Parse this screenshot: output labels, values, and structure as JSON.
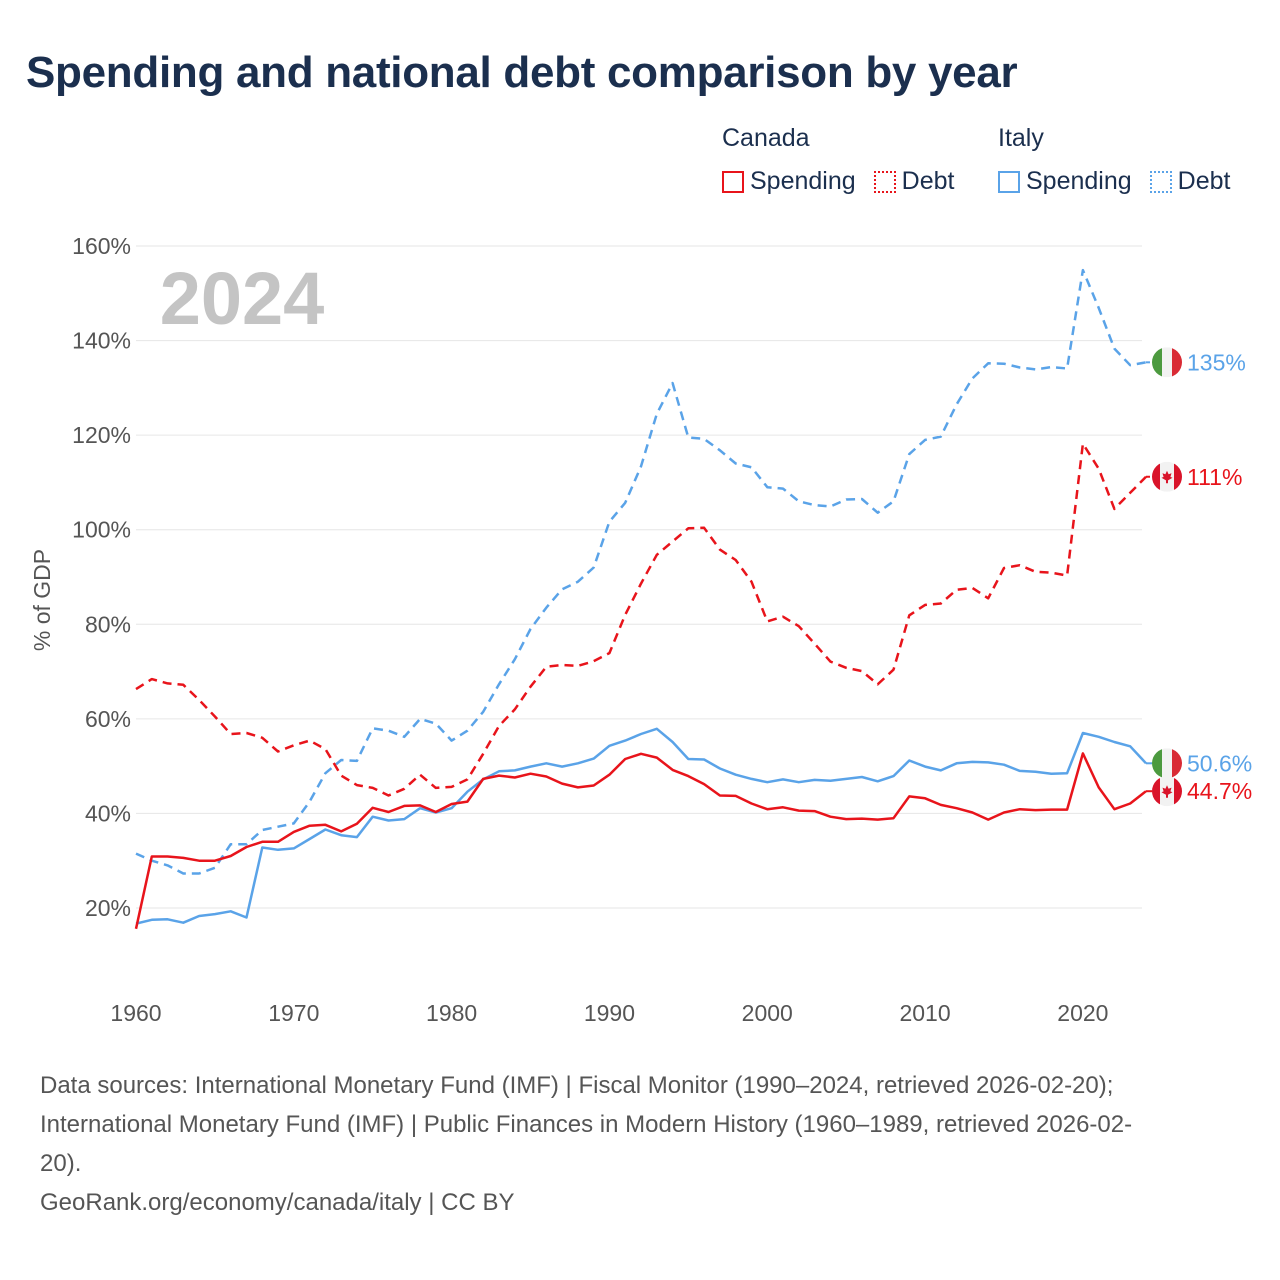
{
  "chart_data": {
    "type": "line",
    "title": "Spending and national debt comparison by year",
    "year_watermark": "2024",
    "ylabel": "% of GDP",
    "xlabel": "",
    "xlim": [
      1960,
      2024
    ],
    "ylim": [
      10,
      160
    ],
    "x_ticks": [
      1960,
      1970,
      1980,
      1990,
      2000,
      2010,
      2020
    ],
    "y_ticks": [
      20,
      40,
      60,
      80,
      100,
      120,
      140,
      160
    ],
    "y_tick_labels": [
      "20%",
      "40%",
      "60%",
      "80%",
      "100%",
      "120%",
      "140%",
      "160%"
    ],
    "legend": {
      "groups": [
        {
          "country": "Canada",
          "items": [
            {
              "label": "Spending",
              "style": "solid",
              "color": "#e8141b"
            },
            {
              "label": "Debt",
              "style": "dotted",
              "color": "#e8141b"
            }
          ]
        },
        {
          "country": "Italy",
          "items": [
            {
              "label": "Spending",
              "style": "solid",
              "color": "#5aa3e8"
            },
            {
              "label": "Debt",
              "style": "dotted",
              "color": "#5aa3e8"
            }
          ]
        }
      ],
      "placement": "top-right"
    },
    "series": [
      {
        "name": "Italy Debt",
        "country": "Italy",
        "kind": "Debt",
        "color": "#5aa3e8",
        "dash": true,
        "end_label": "135%",
        "flag": "italy",
        "x": [
          1960,
          1961,
          1962,
          1963,
          1964,
          1965,
          1966,
          1967,
          1968,
          1969,
          1970,
          1971,
          1972,
          1973,
          1974,
          1975,
          1976,
          1977,
          1978,
          1979,
          1980,
          1981,
          1982,
          1983,
          1984,
          1985,
          1986,
          1987,
          1988,
          1989,
          1990,
          1991,
          1992,
          1993,
          1994,
          1995,
          1996,
          1997,
          1998,
          1999,
          2000,
          2001,
          2002,
          2003,
          2004,
          2005,
          2006,
          2007,
          2008,
          2009,
          2010,
          2011,
          2012,
          2013,
          2014,
          2015,
          2016,
          2017,
          2018,
          2019,
          2020,
          2021,
          2022,
          2023,
          2024
        ],
        "values": [
          31.5,
          30,
          29,
          27.3,
          27.3,
          28.5,
          33.5,
          33.5,
          36.5,
          37.2,
          37.9,
          42.5,
          48.5,
          51.3,
          51.1,
          58,
          57.5,
          56.2,
          60,
          59,
          55.4,
          57.5,
          61.5,
          67.3,
          72.6,
          79,
          83.5,
          87.4,
          89,
          92,
          101.7,
          105.7,
          113.4,
          124.5,
          131,
          119.5,
          119.2,
          116.8,
          114,
          113.2,
          109,
          108.7,
          106,
          105.2,
          104.9,
          106.4,
          106.5,
          103.6,
          106,
          116,
          119,
          119.7,
          126.5,
          132,
          135.2,
          135.1,
          134.3,
          133.9,
          134.4,
          134.1,
          154.9,
          146.9,
          138.3,
          134.8,
          135.4
        ]
      },
      {
        "name": "Canada Debt",
        "country": "Canada",
        "kind": "Debt",
        "color": "#e8141b",
        "dash": true,
        "end_label": "111%",
        "flag": "canada",
        "x": [
          1960,
          1961,
          1962,
          1963,
          1964,
          1965,
          1966,
          1967,
          1968,
          1969,
          1970,
          1971,
          1972,
          1973,
          1974,
          1975,
          1976,
          1977,
          1978,
          1979,
          1980,
          1981,
          1982,
          1983,
          1984,
          1985,
          1986,
          1987,
          1988,
          1989,
          1990,
          1991,
          1992,
          1993,
          1994,
          1995,
          1996,
          1997,
          1998,
          1999,
          2000,
          2001,
          2002,
          2003,
          2004,
          2005,
          2006,
          2007,
          2008,
          2009,
          2010,
          2011,
          2012,
          2013,
          2014,
          2015,
          2016,
          2017,
          2018,
          2019,
          2020,
          2021,
          2022,
          2023,
          2024
        ],
        "values": [
          66.3,
          68.4,
          67.5,
          67.2,
          64,
          60.5,
          56.8,
          57,
          56,
          53.1,
          54.4,
          55.4,
          53.6,
          48,
          46,
          45.4,
          43.8,
          45.2,
          48.2,
          45.4,
          45.6,
          47.2,
          52.6,
          58.5,
          62,
          66.8,
          71,
          71.4,
          71.2,
          72.2,
          73.9,
          82,
          88.6,
          94.7,
          97.5,
          100.3,
          100.4,
          95.8,
          93.6,
          89,
          80.6,
          81.6,
          79.6,
          75.9,
          72.1,
          70.8,
          70.1,
          67.3,
          70.4,
          81.9,
          84.1,
          84.4,
          87.3,
          87.7,
          85.5,
          91.9,
          92.5,
          91.1,
          90.9,
          90.3,
          118.2,
          112.9,
          104.4,
          107.8,
          111.2
        ]
      },
      {
        "name": "Italy Spending",
        "country": "Italy",
        "kind": "Spending",
        "color": "#5aa3e8",
        "dash": false,
        "end_label": "50.6%",
        "flag": "italy",
        "x": [
          1960,
          1961,
          1962,
          1963,
          1964,
          1965,
          1966,
          1967,
          1968,
          1969,
          1970,
          1971,
          1972,
          1973,
          1974,
          1975,
          1976,
          1977,
          1978,
          1979,
          1980,
          1981,
          1982,
          1983,
          1984,
          1985,
          1986,
          1987,
          1988,
          1989,
          1990,
          1991,
          1992,
          1993,
          1994,
          1995,
          1996,
          1997,
          1998,
          1999,
          2000,
          2001,
          2002,
          2003,
          2004,
          2005,
          2006,
          2007,
          2008,
          2009,
          2010,
          2011,
          2012,
          2013,
          2014,
          2015,
          2016,
          2017,
          2018,
          2019,
          2020,
          2021,
          2022,
          2023,
          2024
        ],
        "values": [
          16.7,
          17.5,
          17.6,
          16.9,
          18.3,
          18.7,
          19.3,
          18,
          32.8,
          32.3,
          32.6,
          34.6,
          36.6,
          35.4,
          35,
          39.3,
          38.5,
          38.8,
          41.1,
          40.2,
          41.1,
          44.6,
          47.2,
          48.9,
          49.1,
          49.9,
          50.6,
          49.9,
          50.6,
          51.6,
          54.3,
          55.4,
          56.8,
          57.9,
          55.1,
          51.5,
          51.4,
          49.5,
          48.2,
          47.3,
          46.6,
          47.2,
          46.6,
          47.1,
          46.9,
          47.3,
          47.7,
          46.8,
          47.9,
          51.2,
          49.9,
          49.1,
          50.6,
          50.9,
          50.8,
          50.3,
          49,
          48.8,
          48.4,
          48.5,
          57,
          56.2,
          55.1,
          54.2,
          50.6
        ]
      },
      {
        "name": "Canada Spending",
        "country": "Canada",
        "kind": "Spending",
        "color": "#e8141b",
        "dash": false,
        "end_label": "44.7%",
        "flag": "canada",
        "x": [
          1960,
          1961,
          1962,
          1963,
          1964,
          1965,
          1966,
          1967,
          1968,
          1969,
          1970,
          1971,
          1972,
          1973,
          1974,
          1975,
          1976,
          1977,
          1978,
          1979,
          1980,
          1981,
          1982,
          1983,
          1984,
          1985,
          1986,
          1987,
          1988,
          1989,
          1990,
          1991,
          1992,
          1993,
          1994,
          1995,
          1996,
          1997,
          1998,
          1999,
          2000,
          2001,
          2002,
          2003,
          2004,
          2005,
          2006,
          2007,
          2008,
          2009,
          2010,
          2011,
          2012,
          2013,
          2014,
          2015,
          2016,
          2017,
          2018,
          2019,
          2020,
          2021,
          2022,
          2023,
          2024
        ],
        "values": [
          15.6,
          30.9,
          30.9,
          30.6,
          30,
          30,
          31,
          32.9,
          34,
          34,
          36.1,
          37.4,
          37.6,
          36.2,
          37.8,
          41.2,
          40.3,
          41.6,
          41.7,
          40.3,
          42,
          42.5,
          47.3,
          48,
          47.6,
          48.4,
          47.8,
          46.3,
          45.5,
          45.9,
          48.2,
          51.5,
          52.6,
          51.8,
          49.2,
          47.9,
          46.2,
          43.8,
          43.7,
          42.1,
          40.9,
          41.3,
          40.6,
          40.5,
          39.3,
          38.8,
          38.9,
          38.7,
          39,
          43.6,
          43.2,
          41.8,
          41.1,
          40.2,
          38.7,
          40.2,
          40.9,
          40.7,
          40.8,
          40.8,
          52.7,
          45.5,
          40.9,
          42.1,
          44.7
        ]
      }
    ]
  },
  "footer": {
    "sources_line1": "Data sources: International Monetary Fund (IMF) | Fiscal Monitor (1990–2024, retrieved 2026-02-20);",
    "sources_line2": "International Monetary Fund (IMF) | Public Finances in Modern History (1960–1989, retrieved 2026-02-",
    "sources_line3": "20).",
    "credit": "GeoRank.org/economy/canada/italy | CC BY"
  }
}
